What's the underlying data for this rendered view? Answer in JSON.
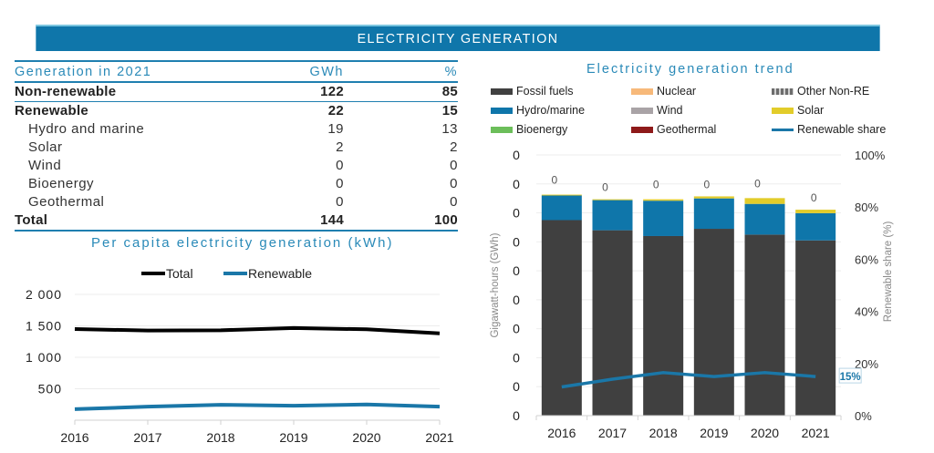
{
  "header": {
    "title": "ELECTRICITY GENERATION"
  },
  "table": {
    "columns": [
      "Generation in 2021",
      "GWh",
      "%"
    ],
    "rows": [
      {
        "label": "Non-renewable",
        "gwh": "122",
        "pct": "85",
        "style": "bold"
      },
      {
        "label": "Renewable",
        "gwh": "22",
        "pct": "15",
        "style": "bold"
      },
      {
        "label": "Hydro and marine",
        "gwh": "19",
        "pct": "13",
        "style": "sub"
      },
      {
        "label": "Solar",
        "gwh": "2",
        "pct": "2",
        "style": "sub"
      },
      {
        "label": "Wind",
        "gwh": "0",
        "pct": "0",
        "style": "sub"
      },
      {
        "label": "Bioenergy",
        "gwh": "0",
        "pct": "0",
        "style": "sub"
      },
      {
        "label": "Geothermal",
        "gwh": "0",
        "pct": "0",
        "style": "sub"
      },
      {
        "label": "Total",
        "gwh": "144",
        "pct": "100",
        "style": "bold"
      }
    ]
  },
  "chart_data": [
    {
      "type": "line",
      "title": "Per capita electricity generation (kWh)",
      "xlabel": "",
      "ylabel": "",
      "x": [
        "2016",
        "2017",
        "2018",
        "2019",
        "2020",
        "2021"
      ],
      "yticks": [
        "500",
        "1 000",
        "1 500",
        "2 000"
      ],
      "ytick_values": [
        500,
        1000,
        1500,
        2000
      ],
      "ylim": [
        0,
        2000
      ],
      "legend": "top-center",
      "grid": true,
      "series": [
        {
          "name": "Total",
          "color": "#000000",
          "values": [
            1450,
            1425,
            1430,
            1465,
            1445,
            1380
          ]
        },
        {
          "name": "Renewable",
          "color": "#1a77a8",
          "values": [
            175,
            215,
            245,
            230,
            250,
            215
          ]
        }
      ]
    },
    {
      "type": "bar",
      "stacked": true,
      "title": "Electricity generation trend",
      "xlabel": "",
      "ylabel": "Gigawatt-hours (GWh)",
      "y2label": "Renewable share (%)",
      "categories": [
        "2016",
        "2017",
        "2018",
        "2019",
        "2020",
        "2021"
      ],
      "yticks": [
        "0",
        "0",
        "0",
        "0",
        "0",
        "0",
        "0",
        "0",
        "0",
        "0"
      ],
      "ylim": [
        0,
        9
      ],
      "y2ticks": [
        "0%",
        "20%",
        "40%",
        "60%",
        "80%",
        "100%"
      ],
      "y2lim": [
        0,
        100
      ],
      "legend": "top",
      "grid": true,
      "legend_entries": [
        {
          "name": "Fossil fuels",
          "color": "#404040",
          "kind": "bar"
        },
        {
          "name": "Nuclear",
          "color": "#f7b97a",
          "kind": "bar"
        },
        {
          "name": "Other Non-RE",
          "color": "#9a9a9a",
          "kind": "pattern"
        },
        {
          "name": "Hydro/marine",
          "color": "#0f76aa",
          "kind": "bar"
        },
        {
          "name": "Wind",
          "color": "#a9a3a6",
          "kind": "bar"
        },
        {
          "name": "Solar",
          "color": "#e2cc2a",
          "kind": "bar"
        },
        {
          "name": "Bioenergy",
          "color": "#6cbe5a",
          "kind": "bar"
        },
        {
          "name": "Geothermal",
          "color": "#8e1a1a",
          "kind": "bar"
        },
        {
          "name": "Renewable share",
          "color": "#1a77a8",
          "kind": "line"
        }
      ],
      "series": [
        {
          "name": "Fossil fuels",
          "color": "#404040",
          "values": [
            6.75,
            6.4,
            6.2,
            6.45,
            6.25,
            6.05
          ]
        },
        {
          "name": "Hydro/marine",
          "color": "#0f76aa",
          "values": [
            0.85,
            1.04,
            1.22,
            1.05,
            1.06,
            0.94
          ]
        },
        {
          "name": "Solar",
          "color": "#e2cc2a",
          "values": [
            0.03,
            0.03,
            0.05,
            0.07,
            0.2,
            0.12
          ]
        }
      ],
      "bar_total_labels": [
        "0",
        "0",
        "0",
        "0",
        "0",
        "0"
      ],
      "line_series": {
        "name": "Renewable share",
        "axis": "y2",
        "color": "#1a77a8",
        "values": [
          11,
          14,
          16.5,
          15,
          16.5,
          15
        ]
      },
      "annotations": [
        {
          "label": "15%",
          "x": "2021",
          "series": "Renewable share"
        }
      ]
    }
  ]
}
